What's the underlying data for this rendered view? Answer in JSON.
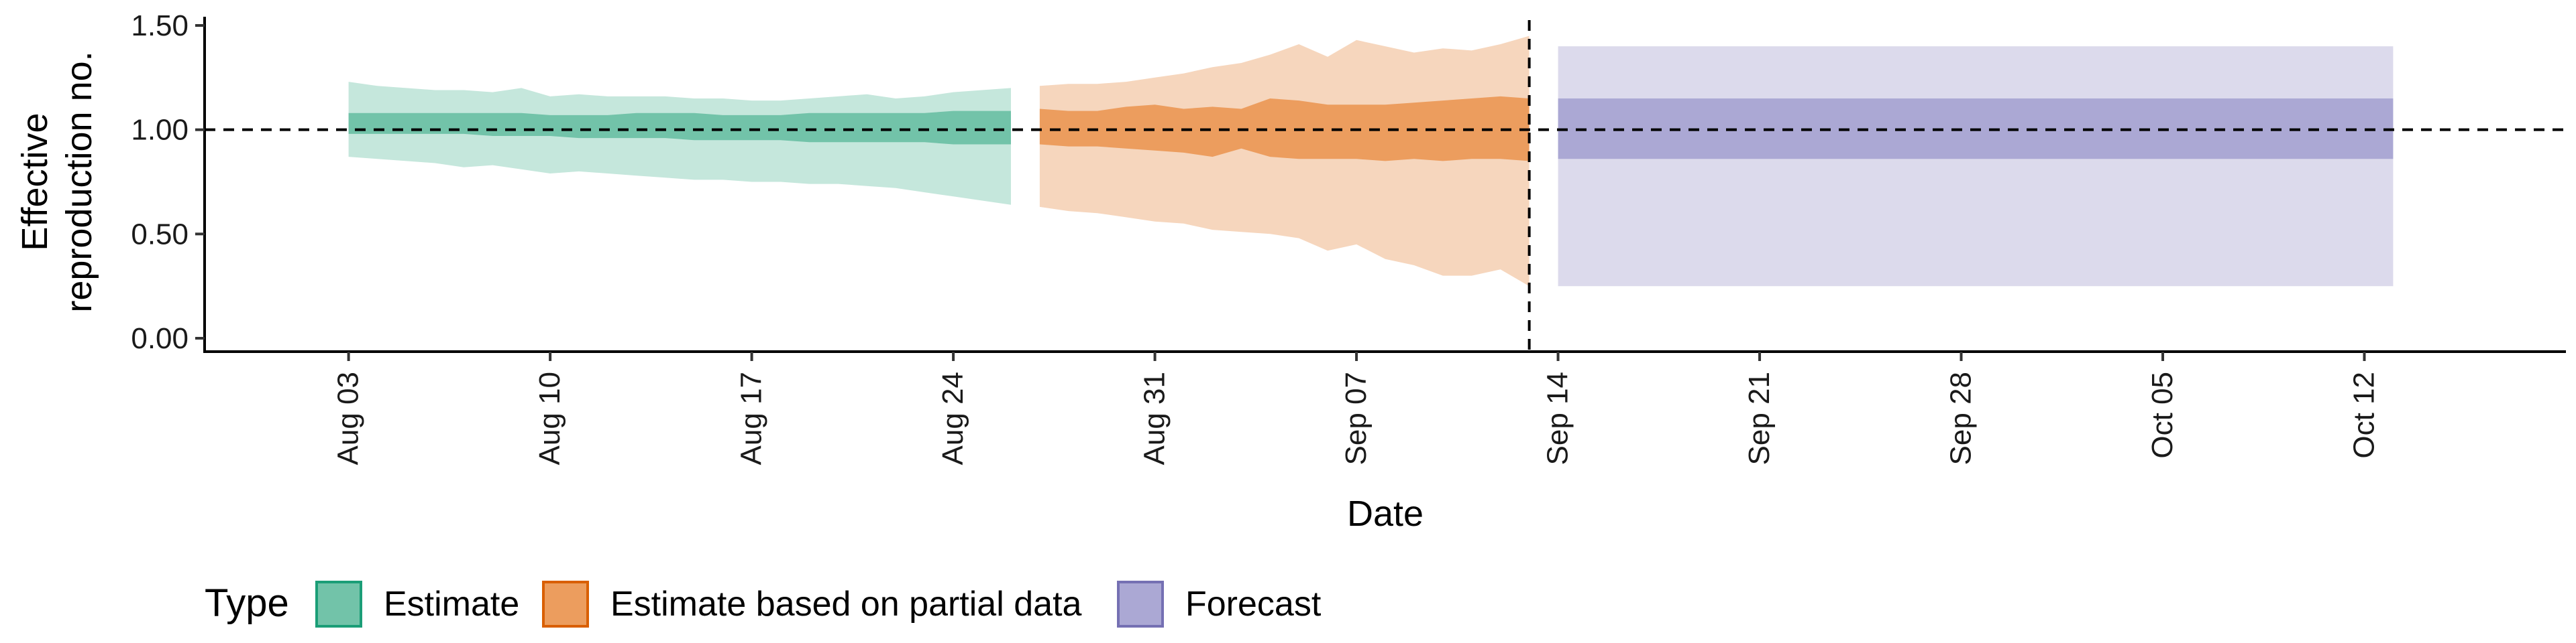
{
  "chart_data": {
    "type": "area",
    "xlabel": "Date",
    "ylabel_lines": [
      "Effective",
      "reproduction no."
    ],
    "ylim": [
      0,
      1.5
    ],
    "y_ticks": [
      0,
      0.5,
      1.0,
      1.5
    ],
    "y_tick_labels": [
      "0.00",
      "0.50",
      "1.00",
      "1.50"
    ],
    "xlim": [
      "2020-07-29",
      "2020-10-19"
    ],
    "x_ticks": [
      "2020-08-03",
      "2020-08-10",
      "2020-08-17",
      "2020-08-24",
      "2020-08-31",
      "2020-09-07",
      "2020-09-14",
      "2020-09-21",
      "2020-09-28",
      "2020-10-05",
      "2020-10-12"
    ],
    "x_tick_labels": [
      "Aug 03",
      "Aug 10",
      "Aug 17",
      "Aug 24",
      "Aug 31",
      "Sep 07",
      "Sep 14",
      "Sep 21",
      "Sep 28",
      "Oct 05",
      "Oct 12"
    ],
    "reference_line_y": 1.0,
    "forecast_start_line": "2020-09-13",
    "legend": {
      "title": "Type",
      "position": "bottom",
      "items": [
        {
          "label": "Estimate",
          "fill": "#72c3a9",
          "stroke": "#1b9e77"
        },
        {
          "label": "Estimate based on partial data",
          "fill": "#ec9d5e",
          "stroke": "#d95f02"
        },
        {
          "label": "Forecast",
          "fill": "#aba8d4",
          "stroke": "#7570b3"
        }
      ]
    },
    "series": [
      {
        "name": "Estimate",
        "color": "#1b9e77",
        "outer_fill": "#c5e7dc",
        "inner_fill": "#72c3a9",
        "x": [
          "2020-08-03",
          "2020-08-04",
          "2020-08-05",
          "2020-08-06",
          "2020-08-07",
          "2020-08-08",
          "2020-08-09",
          "2020-08-10",
          "2020-08-11",
          "2020-08-12",
          "2020-08-13",
          "2020-08-14",
          "2020-08-15",
          "2020-08-16",
          "2020-08-17",
          "2020-08-18",
          "2020-08-19",
          "2020-08-20",
          "2020-08-21",
          "2020-08-22",
          "2020-08-23",
          "2020-08-24",
          "2020-08-25",
          "2020-08-26"
        ],
        "outer_lower": [
          0.87,
          0.86,
          0.85,
          0.84,
          0.82,
          0.83,
          0.81,
          0.79,
          0.8,
          0.79,
          0.78,
          0.77,
          0.76,
          0.76,
          0.75,
          0.75,
          0.74,
          0.74,
          0.73,
          0.72,
          0.7,
          0.68,
          0.66,
          0.64
        ],
        "outer_upper": [
          1.23,
          1.21,
          1.2,
          1.19,
          1.19,
          1.18,
          1.2,
          1.16,
          1.17,
          1.16,
          1.16,
          1.16,
          1.15,
          1.15,
          1.14,
          1.14,
          1.15,
          1.16,
          1.17,
          1.15,
          1.16,
          1.18,
          1.19,
          1.2
        ],
        "inner_lower": [
          0.98,
          0.98,
          0.98,
          0.98,
          0.98,
          0.97,
          0.97,
          0.97,
          0.96,
          0.96,
          0.96,
          0.96,
          0.95,
          0.95,
          0.95,
          0.95,
          0.94,
          0.94,
          0.94,
          0.94,
          0.94,
          0.93,
          0.93,
          0.93
        ],
        "inner_upper": [
          1.08,
          1.08,
          1.08,
          1.08,
          1.08,
          1.08,
          1.08,
          1.07,
          1.07,
          1.07,
          1.08,
          1.08,
          1.08,
          1.07,
          1.07,
          1.07,
          1.08,
          1.08,
          1.08,
          1.08,
          1.08,
          1.09,
          1.09,
          1.09
        ]
      },
      {
        "name": "Estimate based on partial data",
        "color": "#d95f02",
        "outer_fill": "#f6d6bd",
        "inner_fill": "#ec9d5e",
        "x": [
          "2020-08-27",
          "2020-08-28",
          "2020-08-29",
          "2020-08-30",
          "2020-08-31",
          "2020-09-01",
          "2020-09-02",
          "2020-09-03",
          "2020-09-04",
          "2020-09-05",
          "2020-09-06",
          "2020-09-07",
          "2020-09-08",
          "2020-09-09",
          "2020-09-10",
          "2020-09-11",
          "2020-09-12",
          "2020-09-13"
        ],
        "outer_lower": [
          0.63,
          0.61,
          0.6,
          0.58,
          0.56,
          0.55,
          0.52,
          0.51,
          0.5,
          0.48,
          0.42,
          0.45,
          0.38,
          0.35,
          0.3,
          0.3,
          0.33,
          0.25
        ],
        "outer_upper": [
          1.21,
          1.22,
          1.22,
          1.23,
          1.25,
          1.27,
          1.3,
          1.32,
          1.36,
          1.41,
          1.35,
          1.43,
          1.4,
          1.37,
          1.39,
          1.38,
          1.41,
          1.45
        ],
        "inner_lower": [
          0.93,
          0.92,
          0.92,
          0.91,
          0.9,
          0.89,
          0.87,
          0.91,
          0.87,
          0.86,
          0.86,
          0.86,
          0.85,
          0.86,
          0.85,
          0.86,
          0.86,
          0.85
        ],
        "inner_upper": [
          1.1,
          1.09,
          1.09,
          1.11,
          1.12,
          1.1,
          1.11,
          1.1,
          1.15,
          1.14,
          1.12,
          1.12,
          1.12,
          1.13,
          1.14,
          1.15,
          1.16,
          1.15
        ]
      },
      {
        "name": "Forecast",
        "color": "#7570b3",
        "outer_fill": "#dcdaec",
        "inner_fill": "#aba8d4",
        "x": [
          "2020-09-14",
          "2020-10-13"
        ],
        "outer_lower": [
          0.25,
          0.25
        ],
        "outer_upper": [
          1.4,
          1.4
        ],
        "inner_lower": [
          0.86,
          0.86
        ],
        "inner_upper": [
          1.15,
          1.15
        ]
      }
    ]
  }
}
